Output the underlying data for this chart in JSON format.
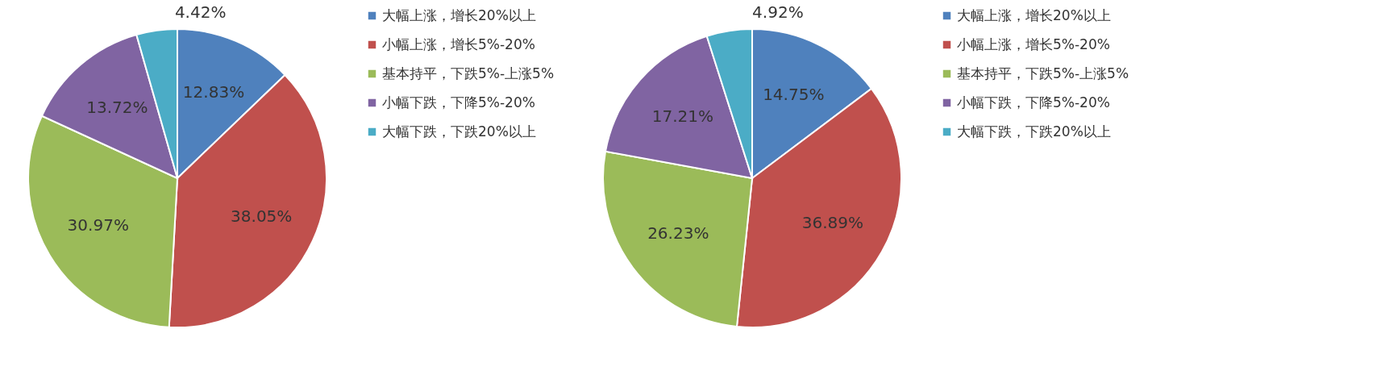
{
  "chart_data": [
    {
      "type": "pie",
      "categories": [
        "大幅上涨，增长20%以上",
        "小幅上涨，增长5%-20%",
        "基本持平，下跌5%-上涨5%",
        "小幅下跌，下降5%-20%",
        "大幅下跌，下跌20%以上"
      ],
      "values": [
        12.83,
        38.05,
        30.97,
        13.72,
        4.42
      ],
      "value_labels": [
        "12.83%",
        "38.05%",
        "30.97%",
        "13.72%",
        "4.42%"
      ],
      "colors": [
        "#4f81bd",
        "#c0504d",
        "#9bbb59",
        "#8064a2",
        "#4bacc6"
      ],
      "legend": "right"
    },
    {
      "type": "pie",
      "categories": [
        "大幅上涨，增长20%以上",
        "小幅上涨，增长5%-20%",
        "基本持平，下跌5%-上涨5%",
        "小幅下跌，下降5%-20%",
        "大幅下跌，下跌20%以上"
      ],
      "values": [
        14.75,
        36.89,
        26.23,
        17.21,
        4.92
      ],
      "value_labels": [
        "14.75%",
        "36.89%",
        "26.23%",
        "17.21%",
        "4.92%"
      ],
      "colors": [
        "#4f81bd",
        "#c0504d",
        "#9bbb59",
        "#8064a2",
        "#4bacc6"
      ],
      "legend": "right"
    }
  ]
}
